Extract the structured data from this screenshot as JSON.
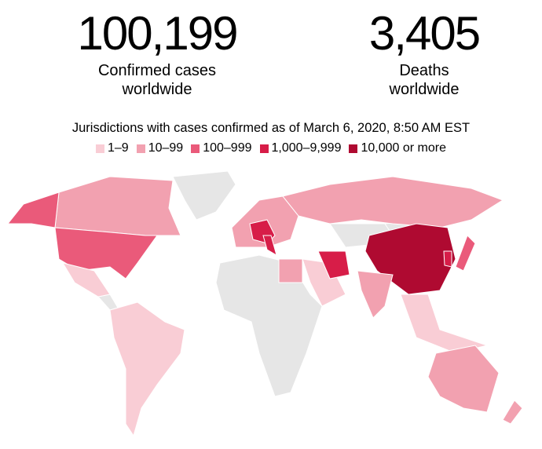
{
  "stats": [
    {
      "value": "100,199",
      "label_line1": "Confirmed cases",
      "label_line2": "worldwide"
    },
    {
      "value": "3,405",
      "label_line1": "Deaths",
      "label_line2": "worldwide"
    }
  ],
  "subtitle": "Jurisdictions with cases confirmed as of March 6, 2020, 8:50 AM EST",
  "legend": [
    {
      "label": "1–9",
      "color": "#f9cdd5"
    },
    {
      "label": "10–99",
      "color": "#f2a1b0"
    },
    {
      "label": "100–999",
      "color": "#ea5a7a"
    },
    {
      "label": "1,000–9,999",
      "color": "#d71d48"
    },
    {
      "label": "10,000 or more",
      "color": "#af0a31"
    }
  ]
}
